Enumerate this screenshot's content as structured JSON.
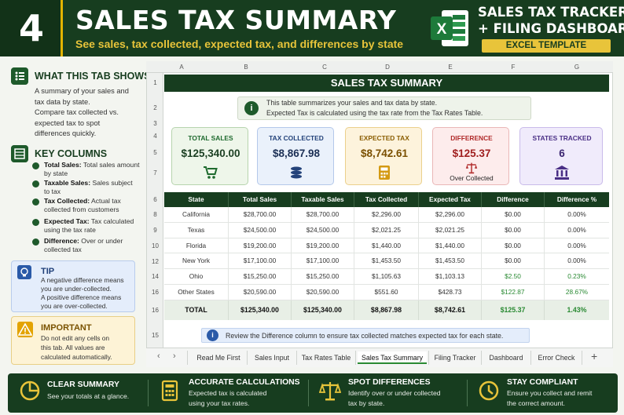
{
  "header": {
    "badge_number": "4",
    "title": "SALES TAX SUMMARY",
    "subtitle": "See sales, tax collected, expected tax, and differences by state",
    "brand_line1": "SALES TAX TRACKER",
    "brand_line2": "+ FILING DASHBOARD",
    "brand_tag": "EXCEL TEMPLATE",
    "excel_icon_letter": "X"
  },
  "left": {
    "what_title": "WHAT THIS TAB SHOWS",
    "what_lines": [
      "A summary of your sales and",
      "tax data by state.",
      "Compare tax collected vs.",
      "expected tax to spot",
      "differences quickly."
    ],
    "key_title": "KEY COLUMNS",
    "key_items": [
      {
        "term": "Total Sales:",
        "desc1": "Total sales amount",
        "desc2": "by state"
      },
      {
        "term": "Taxable Sales:",
        "desc1": "Sales subject",
        "desc2": "to tax"
      },
      {
        "term": "Tax Collected:",
        "desc1": "Actual tax",
        "desc2": "collected from customers"
      },
      {
        "term": "Expected Tax:",
        "desc1": "Tax calculated",
        "desc2": "using the tax rate"
      },
      {
        "term": "Difference:",
        "desc1": "Over or under",
        "desc2": "collected tax"
      }
    ],
    "tip_title": "TIP",
    "tip_lines": [
      "A negative difference means",
      "you are under-collected.",
      "A positive difference means",
      "you are over-collected."
    ],
    "important_title": "IMPORTANT",
    "important_lines": [
      "Do not edit any cells on",
      "this tab. All values are",
      "calculated automatically."
    ],
    "important_bold_word": "not"
  },
  "sheet": {
    "columns": [
      "A",
      "B",
      "C",
      "D",
      "E",
      "F",
      "G"
    ],
    "rows": [
      "1",
      "2",
      "3",
      "4",
      "5",
      "6",
      "7",
      "8",
      "9",
      "10",
      "12",
      "14",
      "16",
      "16",
      "15"
    ],
    "title": "SALES TAX SUMMARY",
    "info_line1": "This table summarizes your sales and tax data by state.",
    "info_line2": "Expected Tax is calculated using the tax rate from the Tax Rates Table.",
    "cards": [
      {
        "title": "TOTAL SALES",
        "value": "$125,340.00",
        "sub": "",
        "icon": "cart-icon",
        "color": "#1e6a2e"
      },
      {
        "title": "TAX COLLECTED",
        "value": "$8,867.98",
        "sub": "",
        "icon": "coins-icon",
        "color": "#23427a"
      },
      {
        "title": "EXPECTED TAX",
        "value": "$8,742.61",
        "sub": "",
        "icon": "calculator-icon",
        "color": "#9a6a00"
      },
      {
        "title": "DIFFERENCE",
        "value": "$125.37",
        "sub": "Over Collected",
        "icon": "scale-icon",
        "color": "#b02a2a"
      },
      {
        "title": "STATES TRACKED",
        "value": "6",
        "sub": "",
        "icon": "bank-icon",
        "color": "#4a2f86"
      }
    ],
    "table_headers": [
      "State",
      "Total Sales",
      "Taxable Sales",
      "Tax Collected",
      "Expected Tax",
      "Difference",
      "Difference %"
    ],
    "table_rows": [
      [
        "California",
        "$28,700.00",
        "$28,700.00",
        "$2,296.00",
        "$2,296.00",
        "$0.00",
        "0.00%"
      ],
      [
        "Texas",
        "$24,500.00",
        "$24,500.00",
        "$2,021.25",
        "$2,021.25",
        "$0.00",
        "0.00%"
      ],
      [
        "Florida",
        "$19,200.00",
        "$19,200.00",
        "$1,440.00",
        "$1,440.00",
        "$0.00",
        "0.00%"
      ],
      [
        "New York",
        "$17,100.00",
        "$17,100.00",
        "$1,453.50",
        "$1,453.50",
        "$0.00",
        "0.00%"
      ],
      [
        "Ohio",
        "$15,250.00",
        "$15,250.00",
        "$1,105.63",
        "$1,103.13",
        "$2.50",
        "0.23%"
      ],
      [
        "Other States",
        "$20,590.00",
        "$20,590.00",
        "$551.60",
        "$428.73",
        "$122.87",
        "28.67%"
      ]
    ],
    "total_row": [
      "TOTAL",
      "$125,340.00",
      "$125,340.00",
      "$8,867.98",
      "$8,742.61",
      "$125.37",
      "1.43%"
    ],
    "review_text": "Review the Difference column to ensure tax collected matches expected tax for each state."
  },
  "tabs": [
    "Read Me First",
    "Sales Input",
    "Tax Rates Table",
    "Sales Tax Summary",
    "Filing Tracker",
    "Dashboard",
    "Error Check"
  ],
  "active_tab": "Sales Tax Summary",
  "footer": [
    {
      "title": "CLEAR SUMMARY",
      "line1": "See your totals at a glance.",
      "line2": ""
    },
    {
      "title": "ACCURATE CALCULATIONS",
      "line1": "Expected tax is calculated",
      "line2": "using your tax rates."
    },
    {
      "title": "SPOT DIFFERENCES",
      "line1": "Identify over or under collected",
      "line2": "tax by state."
    },
    {
      "title": "STAY COMPLIANT",
      "line1": "Ensure you collect and remit",
      "line2": "the correct amount."
    }
  ],
  "colors": {
    "dark_green": "#173d1f",
    "gold": "#e8c43a",
    "positive": "#2a8a33"
  }
}
